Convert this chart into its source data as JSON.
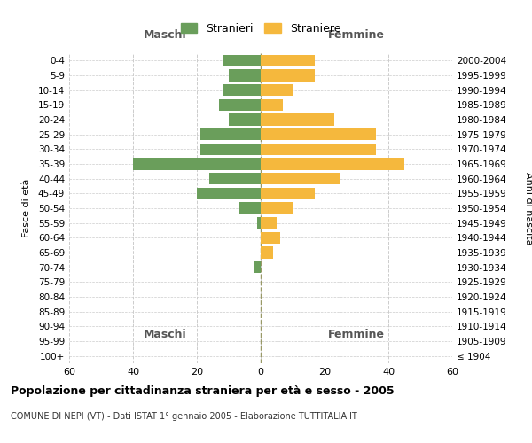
{
  "age_groups": [
    "100+",
    "95-99",
    "90-94",
    "85-89",
    "80-84",
    "75-79",
    "70-74",
    "65-69",
    "60-64",
    "55-59",
    "50-54",
    "45-49",
    "40-44",
    "35-39",
    "30-34",
    "25-29",
    "20-24",
    "15-19",
    "10-14",
    "5-9",
    "0-4"
  ],
  "birth_years": [
    "≤ 1904",
    "1905-1909",
    "1910-1914",
    "1915-1919",
    "1920-1924",
    "1925-1929",
    "1930-1934",
    "1935-1939",
    "1940-1944",
    "1945-1949",
    "1950-1954",
    "1955-1959",
    "1960-1964",
    "1965-1969",
    "1970-1974",
    "1975-1979",
    "1980-1984",
    "1985-1989",
    "1990-1994",
    "1995-1999",
    "2000-2004"
  ],
  "maschi": [
    0,
    0,
    0,
    0,
    0,
    0,
    2,
    0,
    0,
    1,
    7,
    20,
    16,
    40,
    19,
    19,
    10,
    13,
    12,
    10,
    12
  ],
  "femmine": [
    0,
    0,
    0,
    0,
    0,
    0,
    0,
    4,
    6,
    5,
    10,
    17,
    25,
    45,
    36,
    36,
    23,
    7,
    10,
    17,
    17
  ],
  "maschi_color": "#6a9e5b",
  "femmine_color": "#f5b83d",
  "background_color": "#ffffff",
  "grid_color": "#cccccc",
  "title": "Popolazione per cittadinanza straniera per età e sesso - 2005",
  "subtitle": "COMUNE DI NEPI (VT) - Dati ISTAT 1° gennaio 2005 - Elaborazione TUTTITALIA.IT",
  "ylabel_left": "Fasce di età",
  "ylabel_right": "Anni di nascita",
  "xlabel_left": "Maschi",
  "xlabel_right": "Femmine",
  "legend_stranieri": "Stranieri",
  "legend_straniere": "Straniere",
  "xlim": 60,
  "bar_height": 0.8
}
